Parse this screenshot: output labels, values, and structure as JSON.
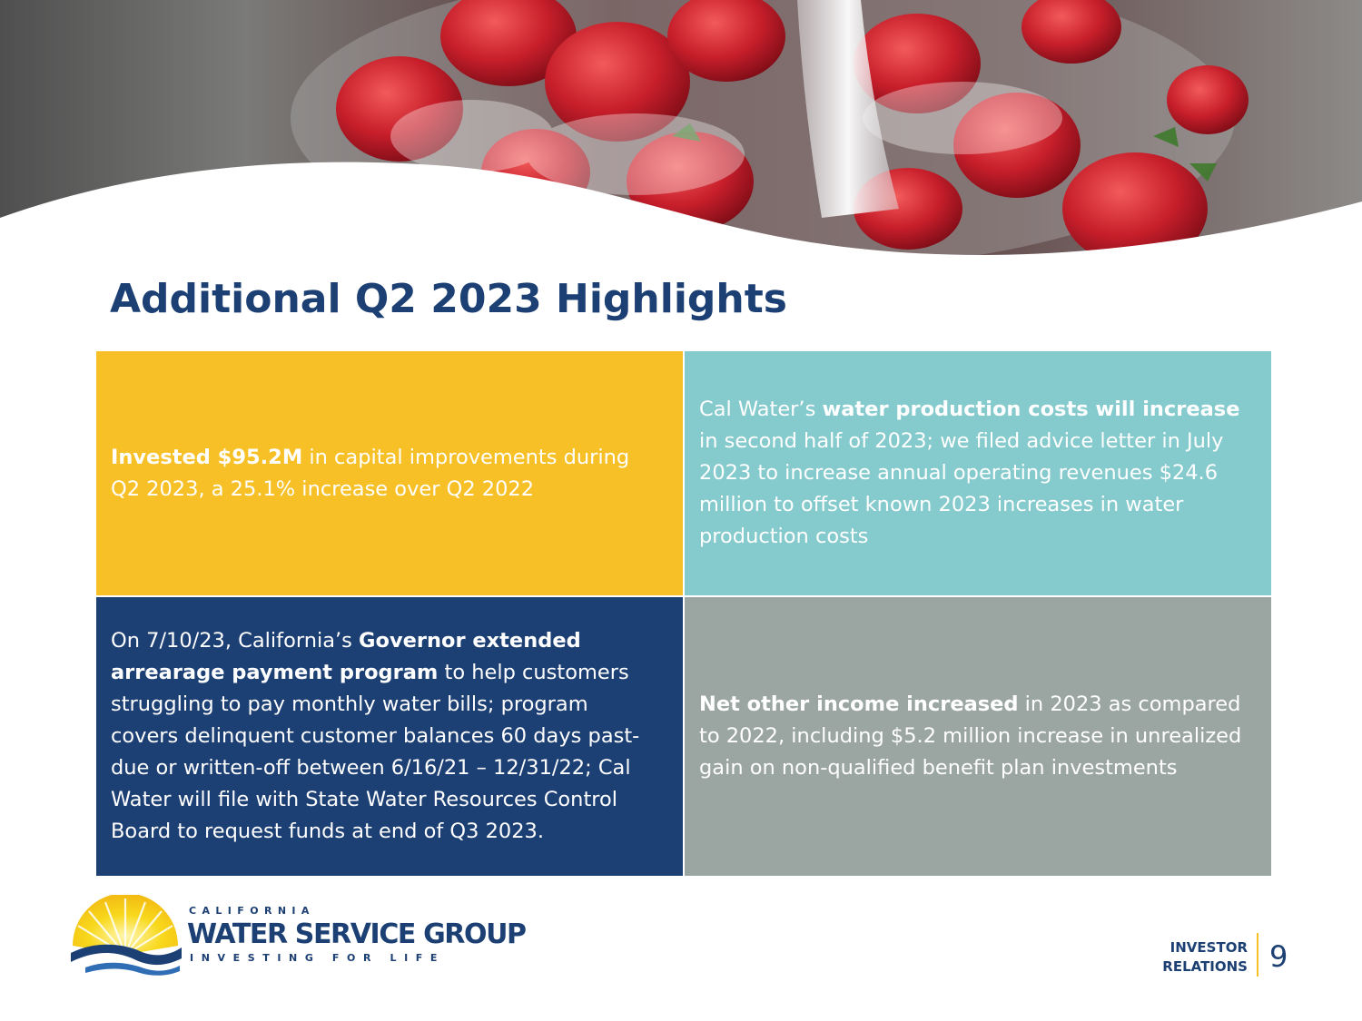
{
  "slide": {
    "title": "Additional Q2 2023 Highlights",
    "page_number": "9"
  },
  "header_image": {
    "description_icon": "strawberries-water-photo"
  },
  "highlights": {
    "capital": {
      "bold": "Invested $95.2M",
      "text": " in capital improvements during Q2 2023, a 25.1% increase over Q2 2022"
    },
    "production_costs": {
      "lead": "Cal Water’s ",
      "bold": "water production costs will increase",
      "text": " in second half of 2023; we filed advice letter in July 2023 to increase annual operating revenues $24.6 million to offset known 2023 increases in water production costs"
    },
    "arrearage": {
      "lead": "On 7/10/23, California’s ",
      "bold": "Governor extended arrearage payment program",
      "text": " to help customers struggling to pay monthly water bills; program covers delinquent customer balances 60 days past-due or written-off between 6/16/21 – 12/31/22; Cal Water will file with State Water Resources Control Board to request funds at end of Q3 2023."
    },
    "other_income": {
      "bold": "Net other income increased",
      "text": " in 2023 as compared to 2022, including $5.2 million increase in unrealized gain on non-qualified benefit plan investments"
    }
  },
  "logo": {
    "top_line": "CALIFORNIA",
    "main_line": "WATER SERVICE GROUP",
    "tagline": "INVESTING FOR LIFE",
    "icon": "sun-wave-icon"
  },
  "footer": {
    "ir_line1": "INVESTOR",
    "ir_line2": "RELATIONS"
  },
  "colors": {
    "navy": "#1c3f74",
    "yellow": "#f6c026",
    "teal": "#85cacc",
    "gray": "#9ba6a3"
  }
}
